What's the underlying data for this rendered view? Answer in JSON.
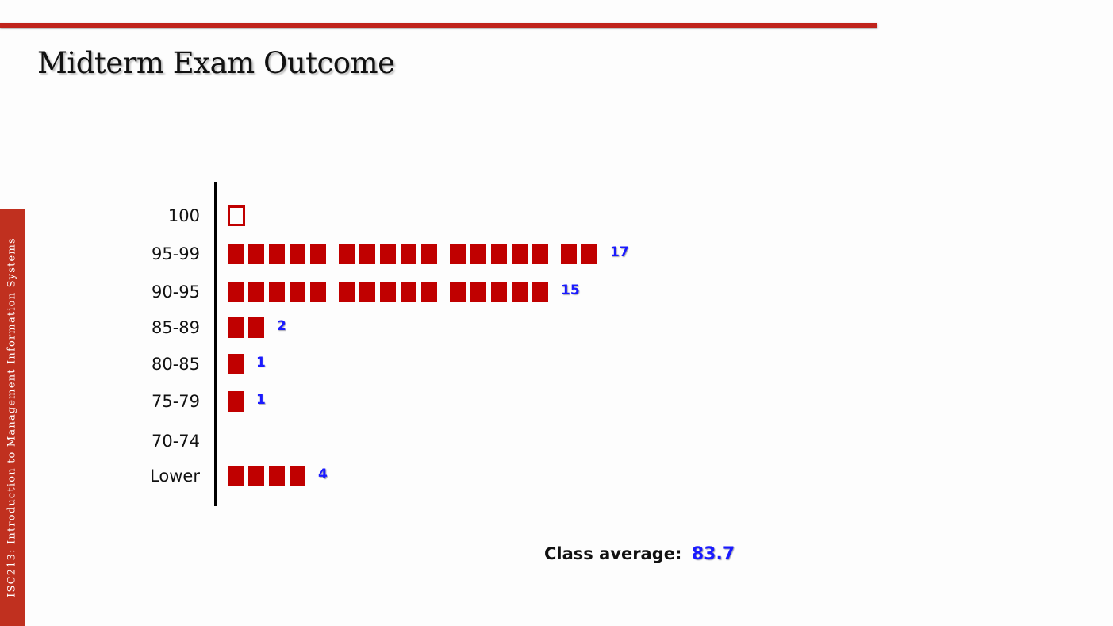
{
  "slide": {
    "title": "Midterm Exam Outcome",
    "side_text": "ISC213: Introduction to Management Information Systems"
  },
  "colors": {
    "accent": "#c0241c",
    "marker": "#c00000",
    "count": "#1a1aff"
  },
  "chart_data": {
    "type": "bar",
    "orientation": "horizontal",
    "categories": [
      "100",
      "95-99",
      "90-95",
      "85-89",
      "80-85",
      "75-79",
      "70-74",
      "Lower"
    ],
    "values": [
      0,
      17,
      15,
      2,
      1,
      1,
      0,
      4
    ],
    "value_labels": [
      "",
      "17",
      "15",
      "2",
      "1",
      "1",
      "",
      "4"
    ],
    "marker": "one filled square per student, grouped in fives",
    "empty_marker_category": "100",
    "title": "",
    "xlabel": "",
    "ylabel": ""
  },
  "summary": {
    "label": "Class average:",
    "value": "83.7"
  }
}
